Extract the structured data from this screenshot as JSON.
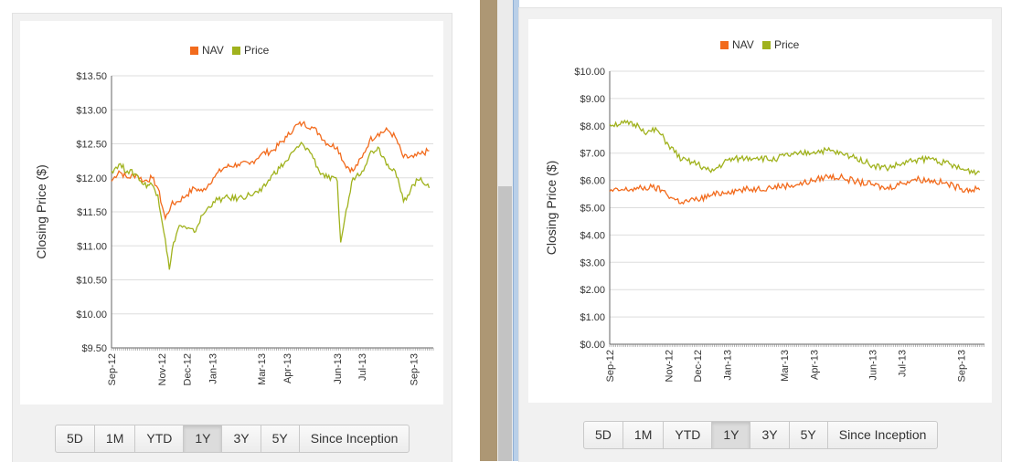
{
  "range_buttons": [
    "5D",
    "1M",
    "YTD",
    "1Y",
    "3Y",
    "5Y",
    "Since Inception"
  ],
  "active_range": "1Y",
  "colors": {
    "nav": "#f26b1d",
    "price": "#a0b21d",
    "grid": "#dddddd",
    "axis": "#666666"
  },
  "chart_data": [
    {
      "type": "line",
      "title": "",
      "ylabel": "Closing Price ($)",
      "xlabel": "",
      "ylim": [
        9.5,
        13.5
      ],
      "yticks": [
        "$9.50",
        "$10.00",
        "$10.50",
        "$11.00",
        "$11.50",
        "$12.00",
        "$12.50",
        "$13.00",
        "$13.50"
      ],
      "xticks": [
        "Sep-12",
        "Nov-12",
        "Dec-12",
        "Jan-13",
        "Mar-13",
        "Apr-13",
        "Jun-13",
        "Jul-13",
        "Sep-13"
      ],
      "xtick_dates": [
        "2012-09-01",
        "2012-11-01",
        "2012-12-01",
        "2013-01-01",
        "2013-03-01",
        "2013-04-01",
        "2013-06-01",
        "2013-07-01",
        "2013-09-01"
      ],
      "legend": [
        "NAV",
        "Price"
      ],
      "grid": true,
      "legend_position": "top-center",
      "series": [
        {
          "name": "NAV",
          "x": [
            "2012-09-01",
            "2012-09-10",
            "2012-09-20",
            "2012-10-01",
            "2012-10-10",
            "2012-10-20",
            "2012-10-27",
            "2012-11-05",
            "2012-11-12",
            "2012-11-20",
            "2012-12-01",
            "2012-12-10",
            "2012-12-20",
            "2013-01-02",
            "2013-01-15",
            "2013-02-01",
            "2013-02-15",
            "2013-03-01",
            "2013-03-15",
            "2013-04-01",
            "2013-04-10",
            "2013-04-20",
            "2013-05-01",
            "2013-05-10",
            "2013-05-20",
            "2013-06-01",
            "2013-06-10",
            "2013-06-20",
            "2013-07-01",
            "2013-07-10",
            "2013-07-20",
            "2013-08-01",
            "2013-08-10",
            "2013-08-20",
            "2013-09-01",
            "2013-09-10",
            "2013-09-20"
          ],
          "values": [
            11.95,
            12.1,
            12.0,
            12.05,
            11.95,
            12.0,
            11.85,
            11.4,
            11.6,
            11.65,
            11.75,
            11.85,
            11.8,
            12.0,
            12.15,
            12.2,
            12.2,
            12.35,
            12.4,
            12.6,
            12.75,
            12.8,
            12.75,
            12.65,
            12.5,
            12.45,
            12.2,
            12.1,
            12.3,
            12.55,
            12.65,
            12.7,
            12.6,
            12.3,
            12.3,
            12.35,
            12.4
          ]
        },
        {
          "name": "Price",
          "x": [
            "2012-09-01",
            "2012-09-10",
            "2012-09-20",
            "2012-10-01",
            "2012-10-10",
            "2012-10-20",
            "2012-10-27",
            "2012-11-05",
            "2012-11-10",
            "2012-11-15",
            "2012-11-22",
            "2012-12-01",
            "2012-12-10",
            "2012-12-20",
            "2013-01-02",
            "2013-01-15",
            "2013-02-01",
            "2013-02-15",
            "2013-03-01",
            "2013-03-15",
            "2013-04-01",
            "2013-04-10",
            "2013-04-20",
            "2013-05-01",
            "2013-05-10",
            "2013-05-20",
            "2013-06-01",
            "2013-06-05",
            "2013-06-10",
            "2013-06-20",
            "2013-07-01",
            "2013-07-10",
            "2013-07-20",
            "2013-08-01",
            "2013-08-10",
            "2013-08-20",
            "2013-09-01",
            "2013-09-10",
            "2013-09-20"
          ],
          "values": [
            12.1,
            12.2,
            12.1,
            12.05,
            11.9,
            11.9,
            11.75,
            11.1,
            10.65,
            11.05,
            11.3,
            11.25,
            11.2,
            11.45,
            11.65,
            11.7,
            11.7,
            11.75,
            11.8,
            12.05,
            12.25,
            12.4,
            12.5,
            12.35,
            12.1,
            12.0,
            11.95,
            11.05,
            11.4,
            12.0,
            12.1,
            12.35,
            12.45,
            12.2,
            12.1,
            11.65,
            11.9,
            12.0,
            11.85
          ]
        }
      ]
    },
    {
      "type": "line",
      "title": "",
      "ylabel": "Closing Price ($)",
      "xlabel": "",
      "ylim": [
        0,
        10
      ],
      "yticks": [
        "$0.00",
        "$1.00",
        "$2.00",
        "$3.00",
        "$4.00",
        "$5.00",
        "$6.00",
        "$7.00",
        "$8.00",
        "$9.00",
        "$10.00"
      ],
      "xticks": [
        "Sep-12",
        "Nov-12",
        "Dec-12",
        "Jan-13",
        "Mar-13",
        "Apr-13",
        "Jun-13",
        "Jul-13",
        "Sep-13"
      ],
      "xtick_dates": [
        "2012-09-01",
        "2012-11-01",
        "2012-12-01",
        "2013-01-01",
        "2013-03-01",
        "2013-04-01",
        "2013-06-01",
        "2013-07-01",
        "2013-09-01"
      ],
      "legend": [
        "NAV",
        "Price"
      ],
      "grid": true,
      "legend_position": "top-center",
      "series": [
        {
          "name": "NAV",
          "x": [
            "2012-09-01",
            "2012-09-15",
            "2012-10-01",
            "2012-10-15",
            "2012-10-25",
            "2012-11-05",
            "2012-11-15",
            "2012-12-01",
            "2012-12-15",
            "2013-01-02",
            "2013-01-15",
            "2013-02-01",
            "2013-02-15",
            "2013-03-01",
            "2013-03-15",
            "2013-04-01",
            "2013-04-15",
            "2013-05-01",
            "2013-05-15",
            "2013-06-01",
            "2013-06-15",
            "2013-07-01",
            "2013-07-15",
            "2013-08-01",
            "2013-08-15",
            "2013-09-01",
            "2013-09-20"
          ],
          "values": [
            5.6,
            5.65,
            5.7,
            5.75,
            5.65,
            5.35,
            5.2,
            5.3,
            5.45,
            5.6,
            5.65,
            5.7,
            5.75,
            5.8,
            5.85,
            6.0,
            6.15,
            6.1,
            5.95,
            5.85,
            5.7,
            5.9,
            6.05,
            6.0,
            5.9,
            5.7,
            5.65
          ]
        },
        {
          "name": "Price",
          "x": [
            "2012-09-01",
            "2012-09-15",
            "2012-10-01",
            "2012-10-10",
            "2012-10-20",
            "2012-11-01",
            "2012-11-15",
            "2012-12-01",
            "2012-12-15",
            "2013-01-02",
            "2013-01-15",
            "2013-02-01",
            "2013-02-15",
            "2013-03-01",
            "2013-03-15",
            "2013-04-01",
            "2013-04-15",
            "2013-05-01",
            "2013-05-15",
            "2013-06-01",
            "2013-06-15",
            "2013-07-01",
            "2013-07-15",
            "2013-08-01",
            "2013-08-15",
            "2013-09-01",
            "2013-09-20"
          ],
          "values": [
            8.05,
            8.1,
            8.0,
            7.75,
            7.85,
            7.3,
            6.75,
            6.6,
            6.3,
            6.75,
            6.8,
            6.85,
            6.75,
            6.9,
            6.95,
            7.05,
            7.1,
            6.95,
            6.85,
            6.55,
            6.45,
            6.6,
            6.75,
            6.8,
            6.65,
            6.4,
            6.3
          ]
        }
      ]
    }
  ]
}
